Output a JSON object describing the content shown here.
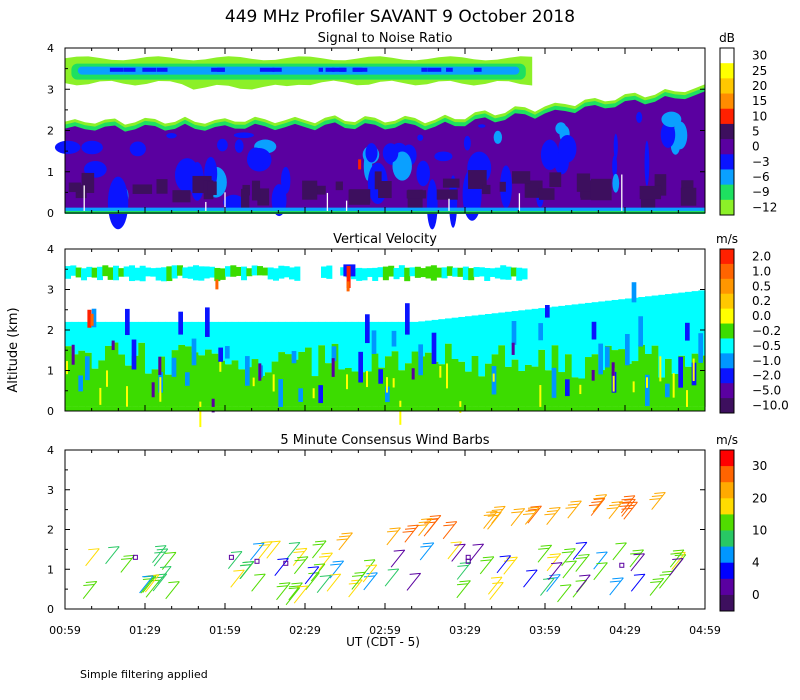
{
  "title": "449 MHz Profiler SAVANT  9 October 2018",
  "footnote": "Simple filtering applied",
  "shared_ylabel": "Altitude (km)",
  "xlabel": "UT  (CDT - 5)",
  "x_ticks": [
    "00:59",
    "01:29",
    "01:59",
    "02:29",
    "02:59",
    "03:29",
    "03:59",
    "04:29",
    "04:59"
  ],
  "y_ticks": [
    "0",
    "1",
    "2",
    "3",
    "4"
  ],
  "chart_data": [
    {
      "type": "heatmap",
      "title": "Signal to Noise Ratio",
      "unit": "dB",
      "ylim": [
        0,
        4
      ],
      "colorbar": {
        "labels": [
          "30",
          "25",
          "20",
          "15",
          "10",
          "5",
          "0",
          "−3",
          "−6",
          "−9",
          "−12"
        ],
        "colors": [
          "#ffffff",
          "#ffff00",
          "#ffc800",
          "#ff8c00",
          "#ff2000",
          "#3d0f5e",
          "#5a00a0",
          "#0a14ff",
          "#0aa0ff",
          "#1ee060",
          "#8cf028"
        ]
      }
    },
    {
      "type": "heatmap",
      "title": "Vertical Velocity",
      "unit": "m/s",
      "ylim": [
        0,
        4
      ],
      "colorbar": {
        "labels": [
          "2.0",
          "1.0",
          "0.5",
          "0.2",
          "0.0",
          "−0.2",
          "−0.5",
          "−1.0",
          "−2.0",
          "−5.0",
          "−10.0"
        ],
        "colors": [
          "#ff2000",
          "#ff6400",
          "#ff9600",
          "#ffc800",
          "#ffff00",
          "#3cdc00",
          "#00ffff",
          "#0096ff",
          "#0a14ff",
          "#5a00a0",
          "#3d0f5e"
        ]
      }
    },
    {
      "type": "scatter",
      "title": "5 Minute Consensus Wind Barbs",
      "unit": "m/s",
      "ylim": [
        0,
        4
      ],
      "colorbar": {
        "labels": [
          "30",
          "20",
          "10",
          "4",
          "0"
        ],
        "colors": [
          "#ff0000",
          "#ff6400",
          "#ffaa00",
          "#ffdc00",
          "#50dc00",
          "#28c864",
          "#0096ff",
          "#0000ff",
          "#5a00a0",
          "#3d0f5e"
        ]
      }
    }
  ]
}
